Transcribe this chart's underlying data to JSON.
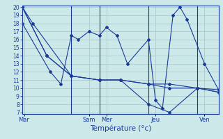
{
  "background_color": "#cce8e8",
  "grid_color": "#aacccc",
  "line_color": "#1a3a9a",
  "ylim": [
    7,
    20
  ],
  "yticks": [
    7,
    8,
    9,
    10,
    11,
    12,
    13,
    14,
    15,
    16,
    17,
    18,
    19,
    20
  ],
  "xlabel": "Température (°c)",
  "day_labels": [
    "Mar",
    "Sam",
    "Mer",
    "Jeu",
    "Ven"
  ],
  "day_tick_positions": [
    0.5,
    19,
    24,
    38,
    52
  ],
  "vline_positions": [
    14,
    22,
    36,
    50
  ],
  "total_points": 56,
  "series": [
    {
      "x": [
        0,
        3,
        14,
        22,
        28,
        36,
        42,
        50,
        56
      ],
      "y": [
        20,
        18,
        11.5,
        11,
        11,
        10.5,
        10.5,
        10,
        9.8
      ]
    },
    {
      "x": [
        0,
        7,
        14,
        22,
        28,
        36,
        42,
        50,
        56
      ],
      "y": [
        20,
        14,
        11.5,
        11,
        11,
        10.5,
        10,
        10,
        9.5
      ]
    },
    {
      "x": [
        0,
        7,
        14,
        22,
        28,
        36,
        42,
        50,
        56
      ],
      "y": [
        20,
        14,
        11.5,
        11,
        11,
        8,
        7,
        10,
        9.5
      ]
    },
    {
      "x": [
        0,
        8,
        11,
        14,
        16,
        19,
        22,
        24,
        27,
        30,
        36,
        38,
        40,
        43,
        45,
        47,
        52,
        56
      ],
      "y": [
        18,
        12,
        10.5,
        16.5,
        16,
        17,
        16.5,
        17.5,
        16.5,
        13,
        16,
        8.5,
        7.5,
        19,
        20,
        18.5,
        13,
        9.8
      ]
    }
  ]
}
